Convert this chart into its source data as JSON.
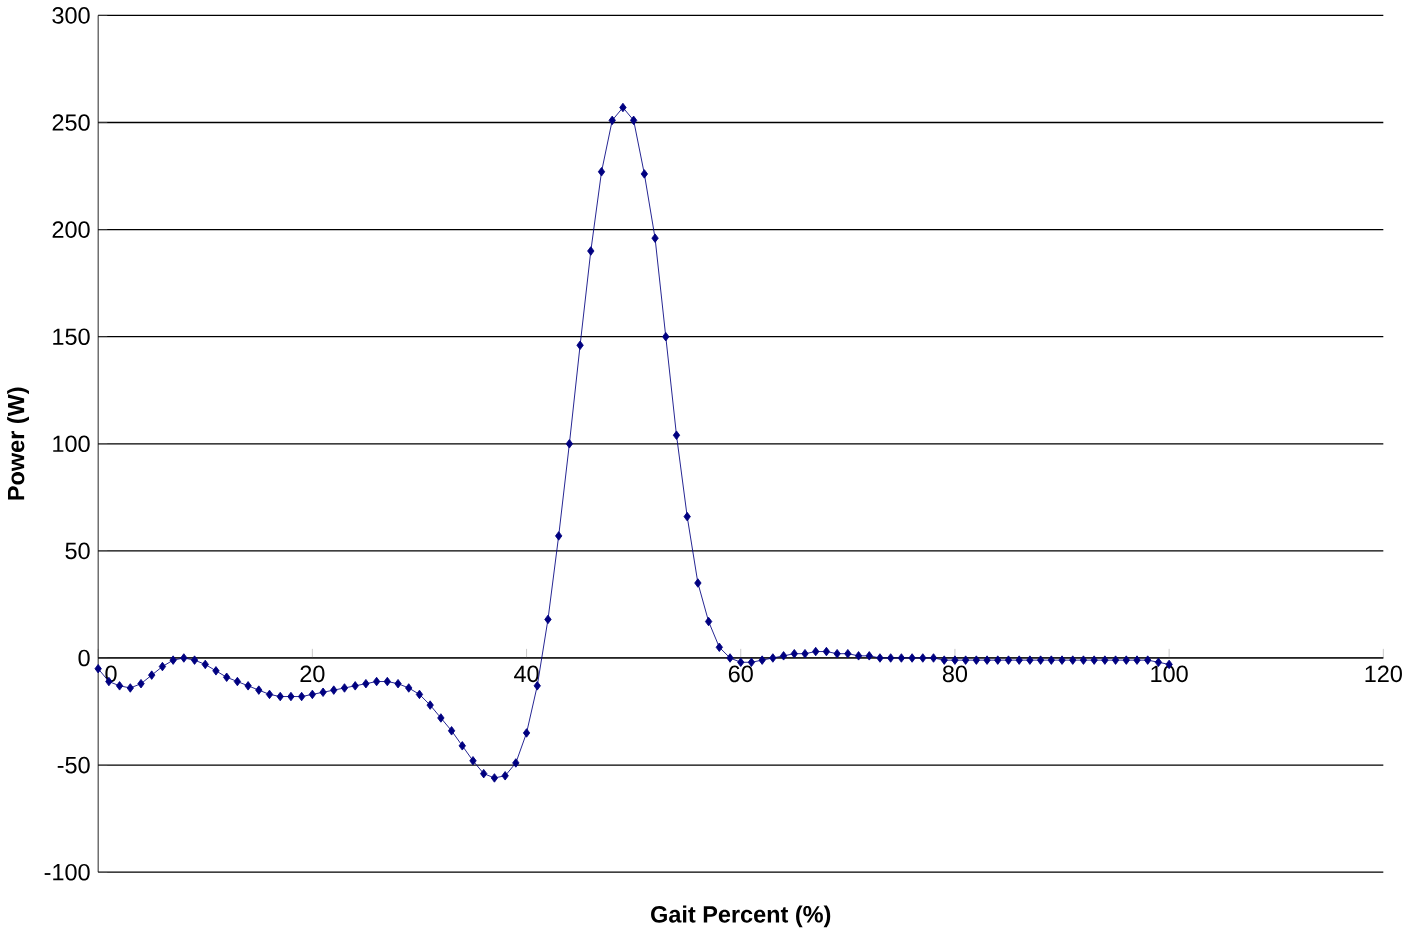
{
  "chart_data": {
    "type": "line",
    "xlabel": "Gait Percent (%)",
    "ylabel": "Power (W)",
    "x": [
      0,
      1,
      2,
      3,
      4,
      5,
      6,
      7,
      8,
      9,
      10,
      11,
      12,
      13,
      14,
      15,
      16,
      17,
      18,
      19,
      20,
      21,
      22,
      23,
      24,
      25,
      26,
      27,
      28,
      29,
      30,
      31,
      32,
      33,
      34,
      35,
      36,
      37,
      38,
      39,
      40,
      41,
      42,
      43,
      44,
      45,
      46,
      47,
      48,
      49,
      50,
      51,
      52,
      53,
      54,
      55,
      56,
      57,
      58,
      59,
      60,
      61,
      62,
      63,
      64,
      65,
      66,
      67,
      68,
      69,
      70,
      71,
      72,
      73,
      74,
      75,
      76,
      77,
      78,
      79,
      80,
      81,
      82,
      83,
      84,
      85,
      86,
      87,
      88,
      89,
      90,
      91,
      92,
      93,
      94,
      95,
      96,
      97,
      98,
      99,
      100
    ],
    "series": [
      {
        "color": "#000080",
        "values": [
          -5,
          -11,
          -13,
          -14,
          -12,
          -8,
          -4,
          -1,
          0,
          -1,
          -3,
          -6,
          -9,
          -11,
          -13,
          -15,
          -17,
          -18,
          -18,
          -18,
          -17,
          -16,
          -15,
          -14,
          -13,
          -12,
          -11,
          -11,
          -12,
          -14,
          -17,
          -22,
          -28,
          -34,
          -41,
          -48,
          -54,
          -56,
          -55,
          -49,
          -35,
          -13,
          18,
          57,
          100,
          146,
          190,
          227,
          251,
          257,
          251,
          226,
          196,
          150,
          104,
          66,
          35,
          17,
          5,
          0,
          -2,
          -2,
          -1,
          0,
          1,
          2,
          2,
          3,
          3,
          2,
          2,
          1,
          1,
          0,
          0,
          0,
          0,
          0,
          0,
          -1,
          -1,
          -1,
          -1,
          -1,
          -1,
          -1,
          -1,
          -1,
          -1,
          -1,
          -1,
          -1,
          -1,
          -1,
          -1,
          -1,
          -1,
          -1,
          -1,
          -2,
          -3
        ]
      }
    ],
    "xlim": [
      0,
      120
    ],
    "xticks": [
      0,
      20,
      40,
      60,
      80,
      100,
      120
    ],
    "ylim": [
      -100,
      300
    ],
    "yticks": [
      -100,
      -50,
      0,
      50,
      100,
      150,
      200,
      250,
      300
    ],
    "grid": "y",
    "marker": "diamond",
    "line_style": "solid"
  }
}
